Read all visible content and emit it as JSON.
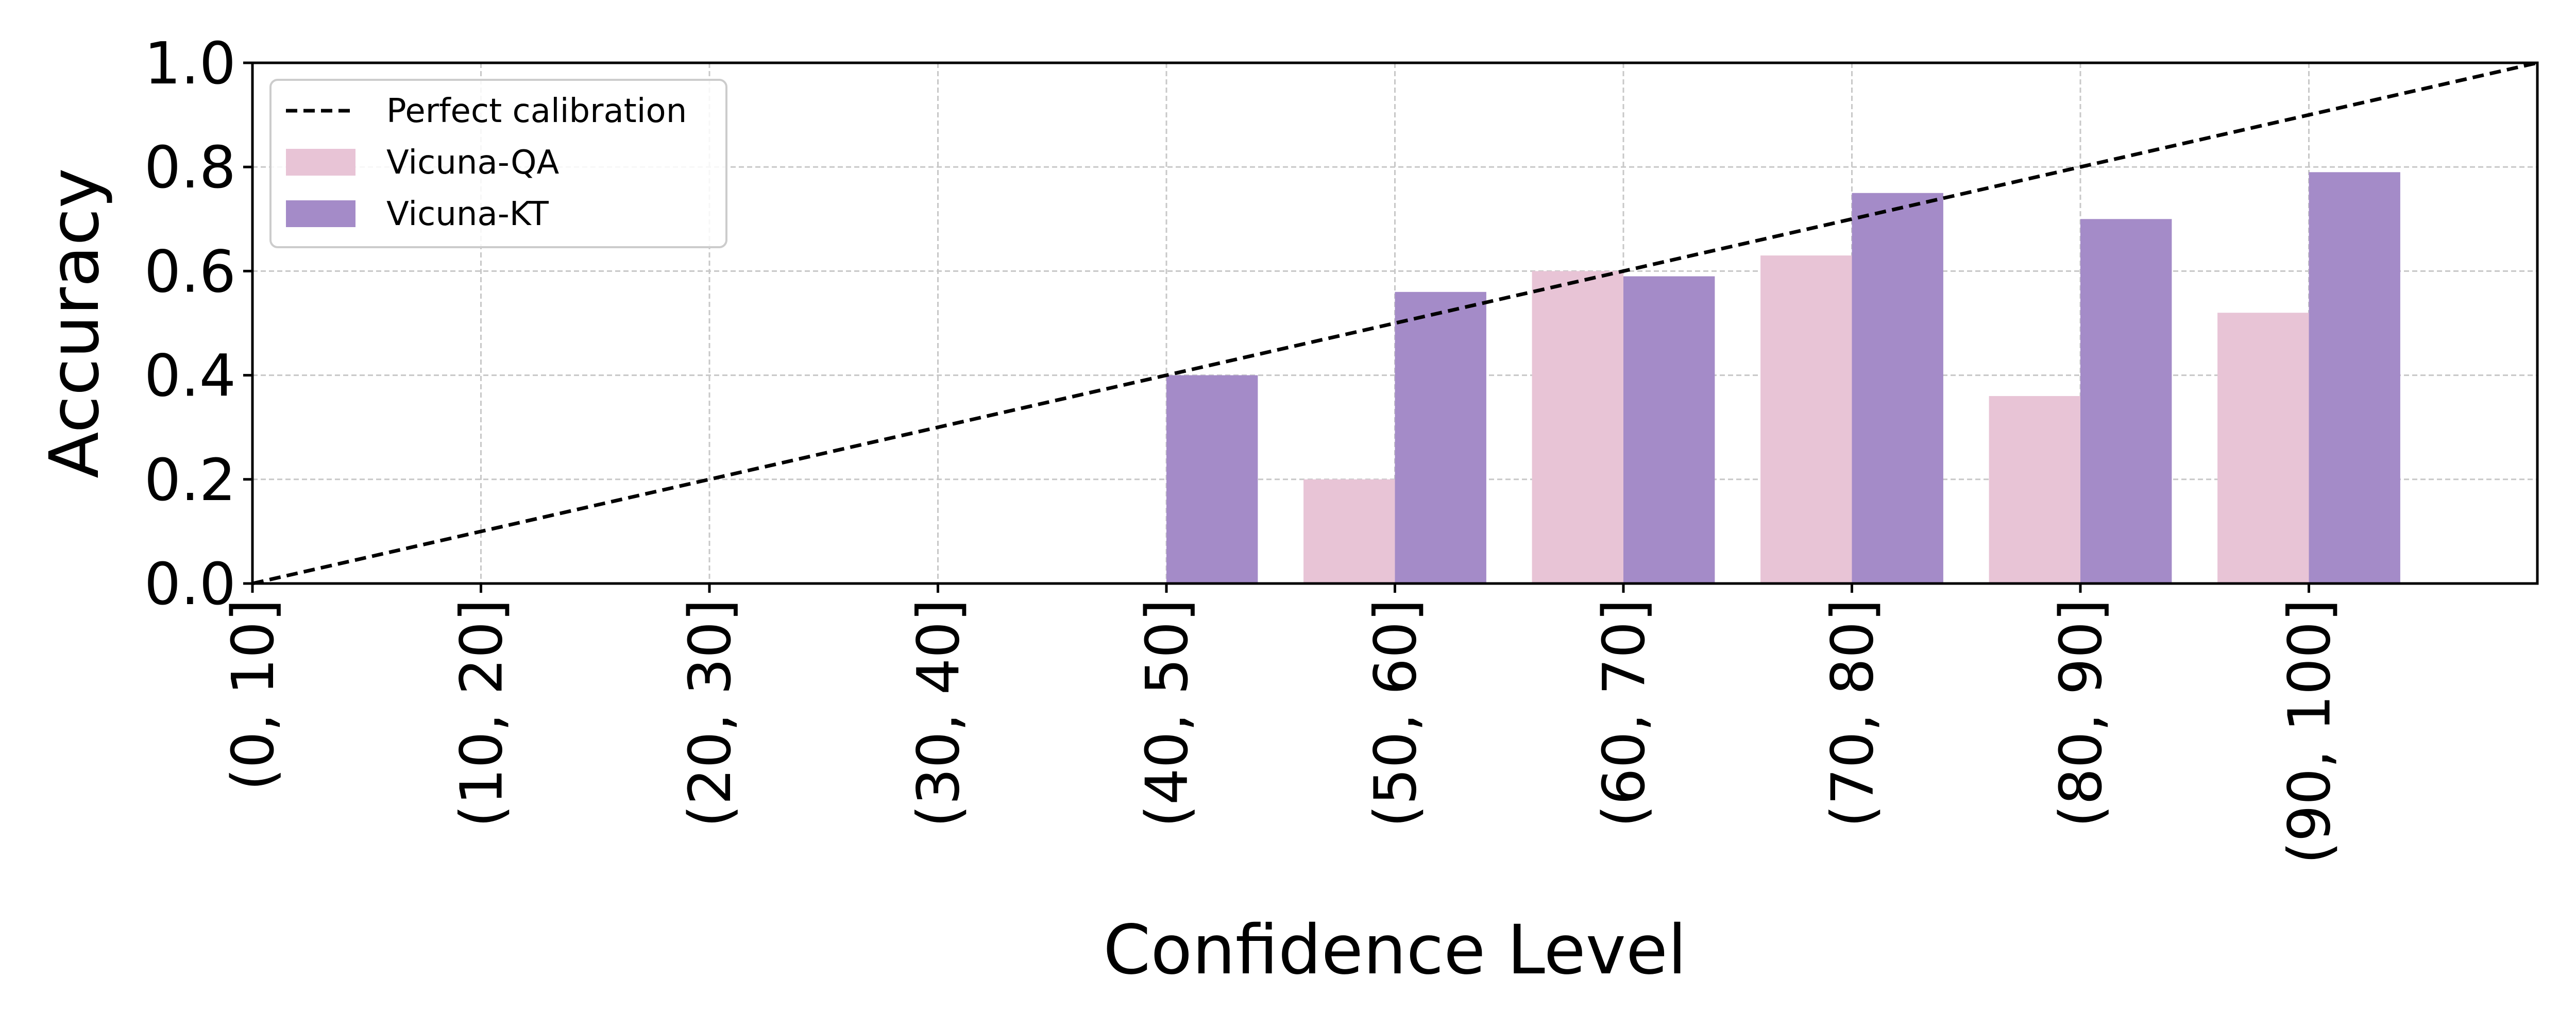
{
  "chart_data": {
    "type": "bar",
    "xlabel": "Confidence Level",
    "ylabel": "Accuracy",
    "categories": [
      "(0, 10]",
      "(10, 20]",
      "(20, 30]",
      "(30, 40]",
      "(40, 50]",
      "(50, 60]",
      "(60, 70]",
      "(70, 80]",
      "(80, 90]",
      "(90, 100]"
    ],
    "xlim": [
      0,
      100
    ],
    "ylim": [
      0.0,
      1.0
    ],
    "yticks": [
      "0.0",
      "0.2",
      "0.4",
      "0.6",
      "0.8",
      "1.0"
    ],
    "grid": true,
    "legend_position": "top-left",
    "series": [
      {
        "name": "Vicuna-QA",
        "color": "#e8c4d6",
        "values": [
          null,
          null,
          null,
          null,
          null,
          0.2,
          0.6,
          0.63,
          0.36,
          0.52
        ]
      },
      {
        "name": "Vicuna-KT",
        "color": "#a48bc8",
        "values": [
          null,
          null,
          null,
          null,
          0.4,
          0.56,
          0.59,
          0.75,
          0.7,
          0.79
        ]
      }
    ],
    "reference_line": {
      "name": "Perfect calibration",
      "color": "#000000",
      "x": [
        0,
        100
      ],
      "y": [
        0.0,
        1.0
      ]
    }
  }
}
